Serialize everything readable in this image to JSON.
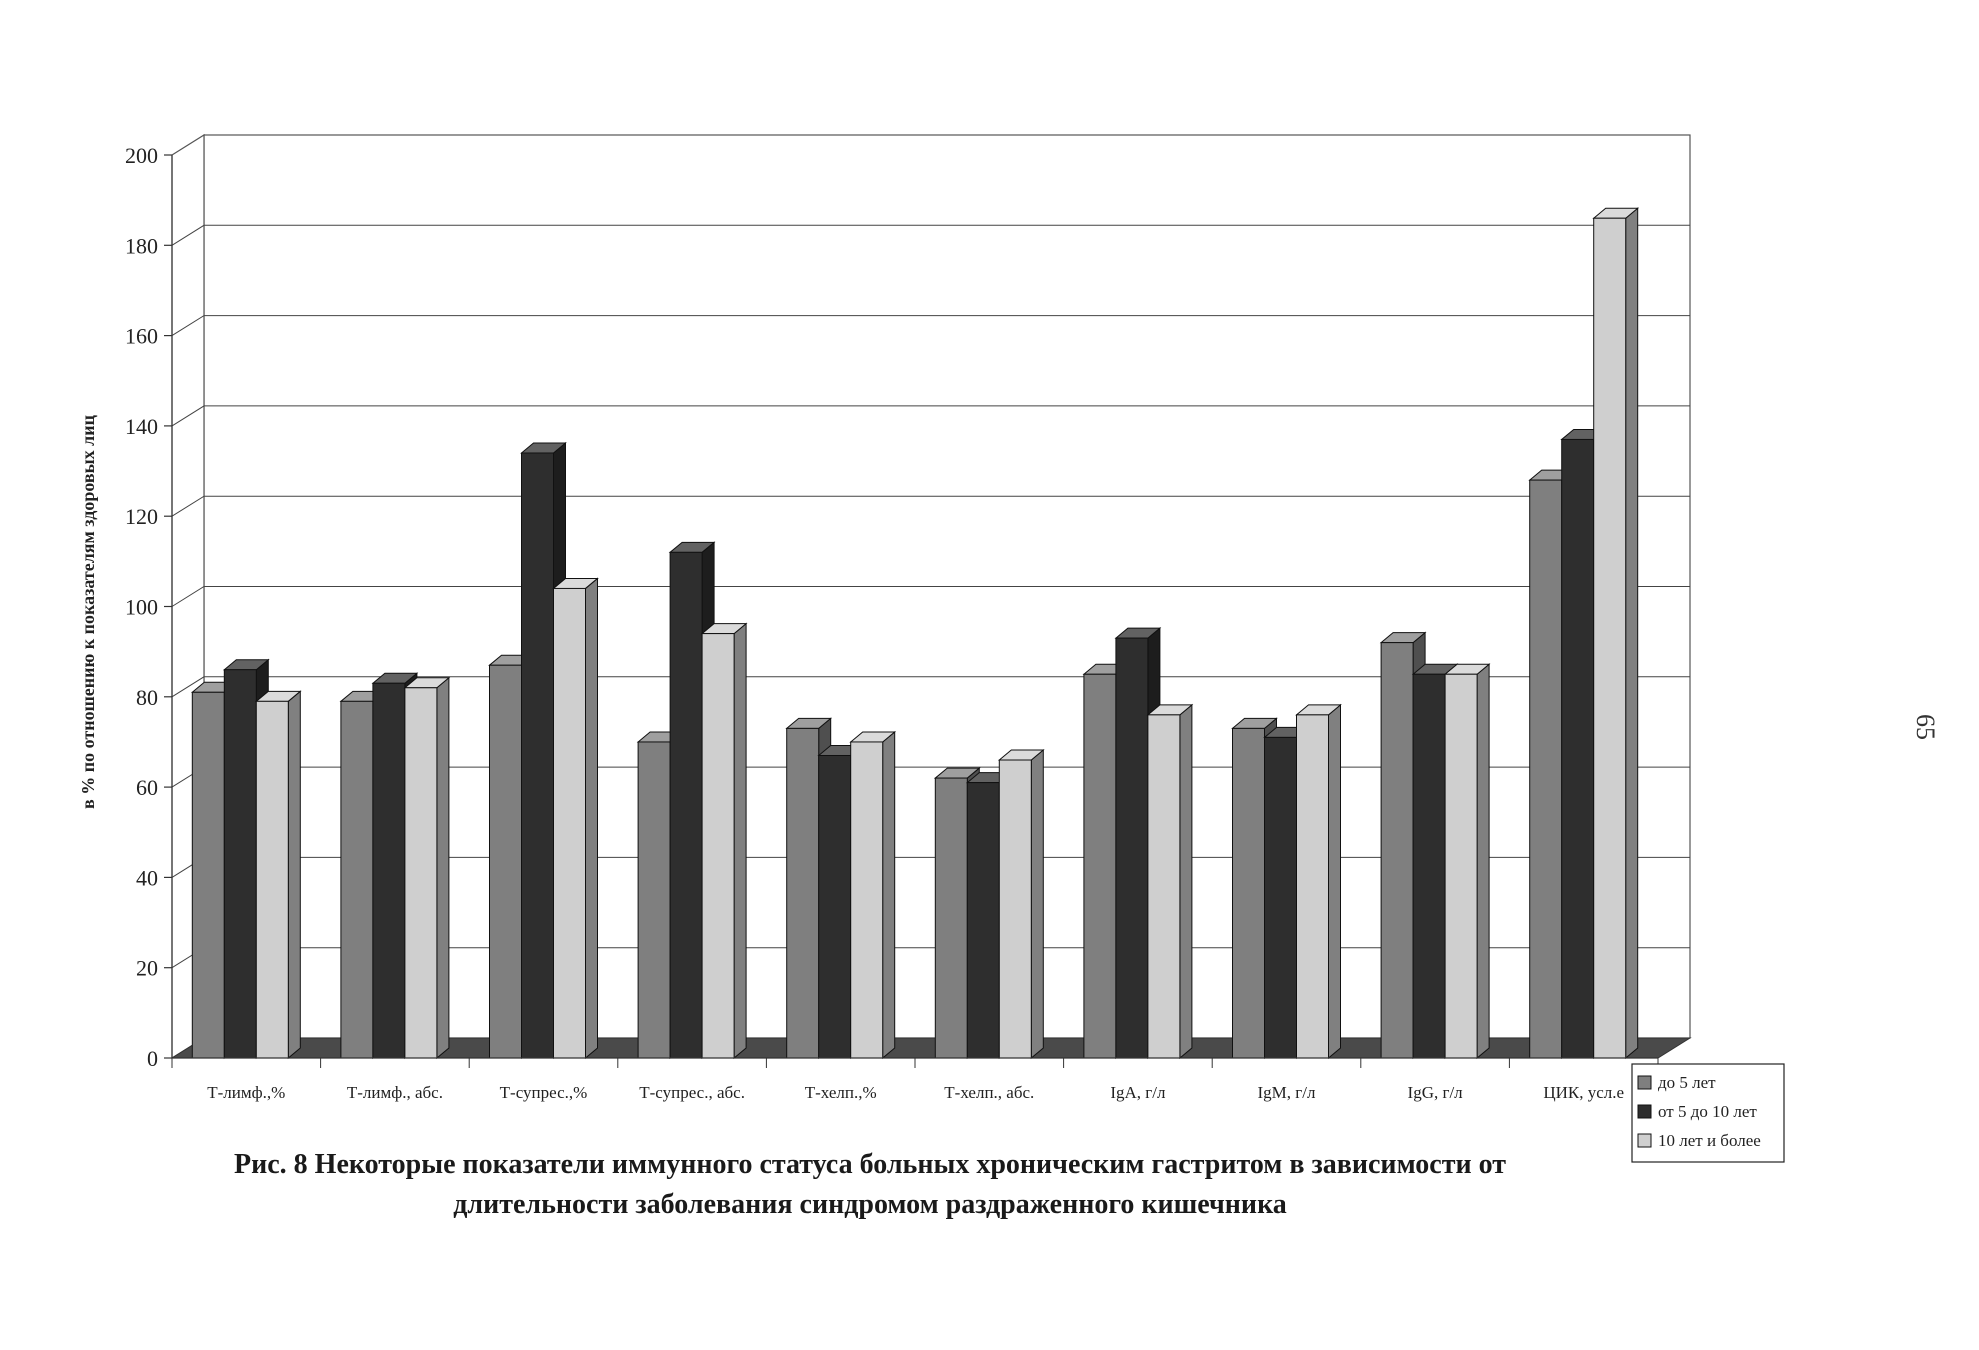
{
  "chart_data": {
    "type": "bar",
    "ylabel": "в % по отношению к показателям здоровых лиц",
    "ylim": [
      0,
      200
    ],
    "yticks": [
      0,
      20,
      40,
      60,
      80,
      100,
      120,
      140,
      160,
      180,
      200
    ],
    "grid": true,
    "legend_position": "bottom-right",
    "categories": [
      "Т-лимф.,%",
      "Т-лимф., абс.",
      "Т-супрес.,%",
      "Т-супрес., абс.",
      "Т-хелп.,%",
      "Т-хелп., абс.",
      "IgA, г/л",
      "IgM, г/л",
      "IgG, г/л",
      "ЦИК, усл.е"
    ],
    "series": [
      {
        "name": "до 5 лет",
        "color": "#7f7f7f",
        "values": [
          81,
          79,
          87,
          70,
          73,
          62,
          85,
          73,
          92,
          128
        ]
      },
      {
        "name": "от 5 до 10 лет",
        "color": "#2e2e2e",
        "values": [
          86,
          83,
          134,
          112,
          67,
          61,
          93,
          71,
          85,
          137
        ]
      },
      {
        "name": "10 лет и более",
        "color": "#cfcfcf",
        "values": [
          79,
          82,
          104,
          94,
          70,
          66,
          76,
          76,
          85,
          186
        ]
      }
    ]
  },
  "caption": {
    "line1": "Рис. 8 Некоторые показатели иммунного статуса больных хроническим гастритом в зависимости от",
    "line2": "длительности заболевания синдромом раздраженного кишечника"
  },
  "page_number": "65"
}
